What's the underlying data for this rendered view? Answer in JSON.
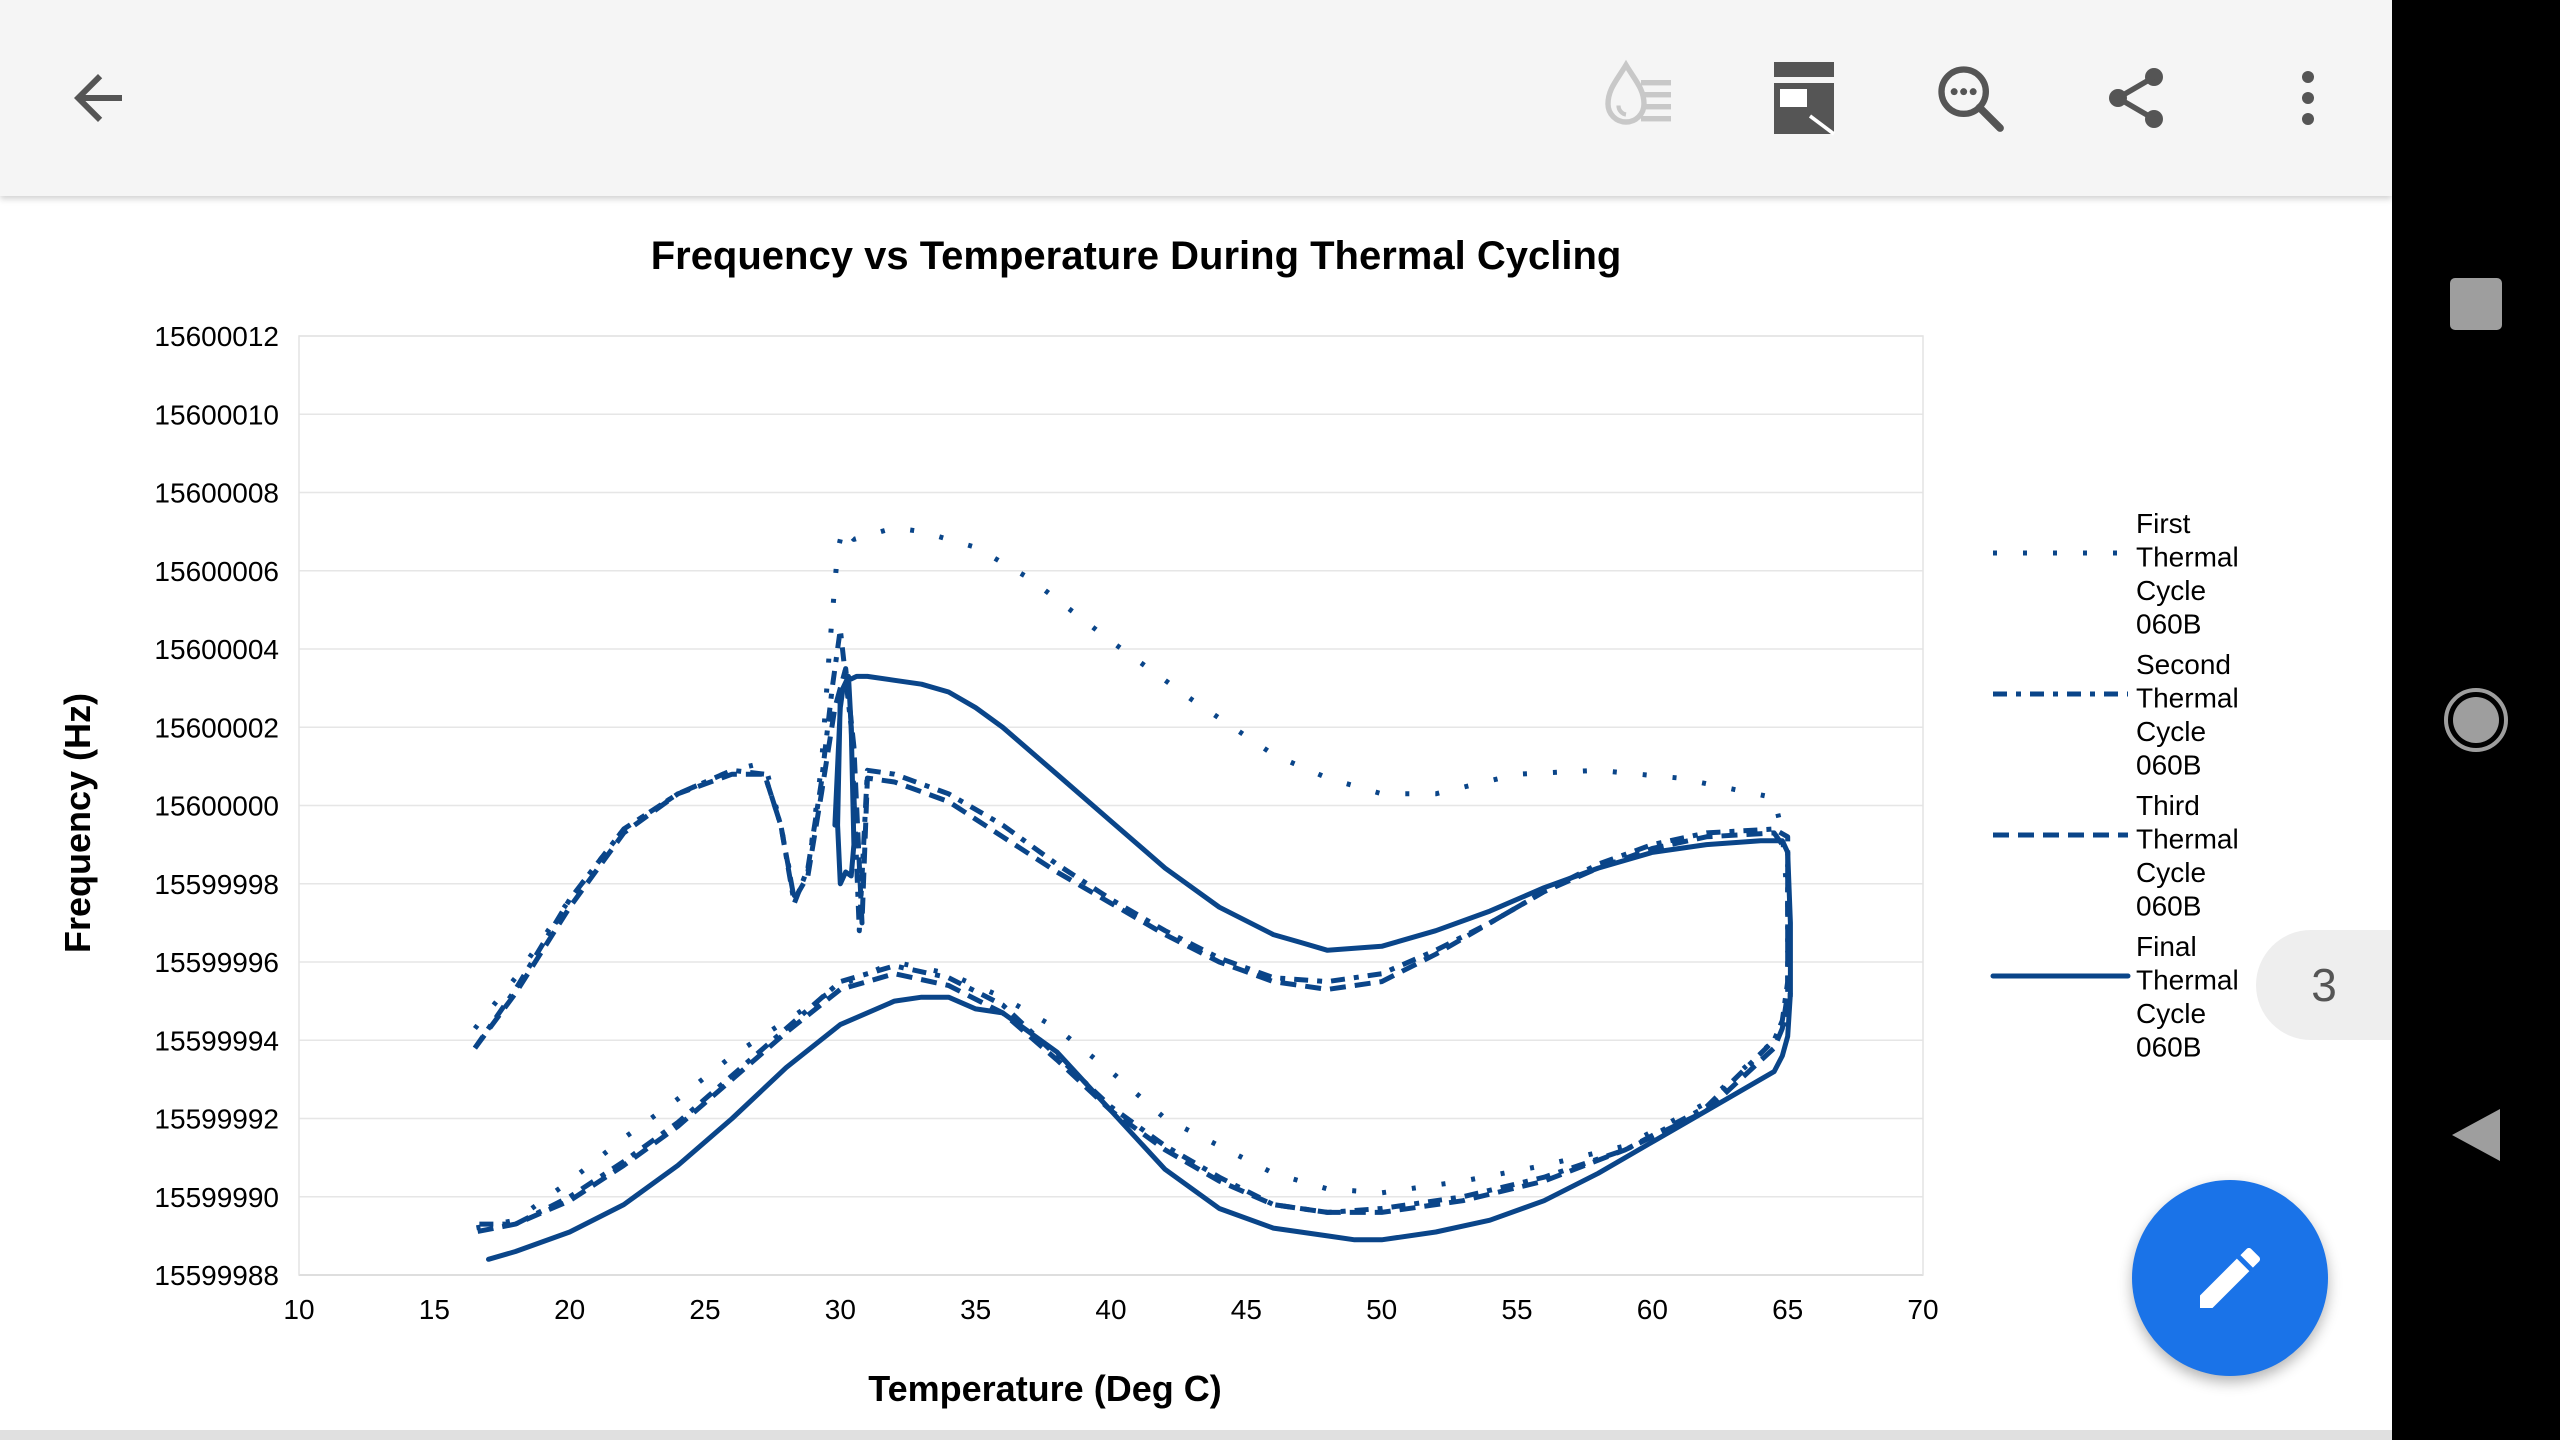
{
  "toolbar": {
    "icons": [
      "back-arrow-icon",
      "ink-mode-icon",
      "page-layout-icon",
      "find-in-document-icon",
      "share-icon",
      "more-vert-icon"
    ]
  },
  "page_indicator": {
    "value": "3"
  },
  "colors": {
    "series": "#0a4589",
    "fab": "#1a73e8",
    "toolbar_bg": "#f5f5f5"
  },
  "chart_data": {
    "type": "scatter",
    "title": "Frequency vs Temperature During Thermal Cycling",
    "xlabel": "Temperature (Deg C)",
    "ylabel": "Frequency (Hz)",
    "xlim": [
      10,
      70
    ],
    "ylim": [
      15599988,
      15600012
    ],
    "x_ticks": [
      "10",
      "15",
      "20",
      "25",
      "30",
      "35",
      "40",
      "45",
      "50",
      "55",
      "60",
      "65",
      "70"
    ],
    "y_ticks": [
      "15599988",
      "15599990",
      "15599992",
      "15599994",
      "15599996",
      "15599998",
      "15600000",
      "15600002",
      "15600004",
      "15600006",
      "15600008",
      "15600010",
      "15600012"
    ],
    "grid": "horizontal",
    "legend_position": "right",
    "series": [
      {
        "name": "First Thermal Cycle 060B",
        "style": "dotted",
        "x": [
          16.5,
          18,
          20,
          22,
          24,
          26,
          27.2,
          27.8,
          28.3,
          28.8,
          29.3,
          29.6,
          29.9,
          30.1,
          30.5,
          31,
          32,
          33,
          35,
          37,
          40,
          43,
          46,
          48,
          50,
          52,
          55,
          58,
          61,
          64.5,
          64.8,
          65,
          65.1,
          64.9,
          64.5,
          62,
          59,
          56,
          53,
          50,
          48,
          46,
          44,
          42,
          40,
          38,
          36,
          34,
          32,
          30,
          28,
          26,
          24,
          22,
          20,
          18,
          16.5
        ],
        "y": [
          15599994.3,
          15599995.6,
          15599997.6,
          15599999.4,
          15600000.3,
          15600000.9,
          15600001.1,
          15599999.5,
          15599997.7,
          15599998.3,
          15600001,
          15600004,
          15600006.5,
          15600007.1,
          15600006.8,
          15600006.9,
          15600007.1,
          15600007,
          15600006.6,
          15600005.8,
          15600004.2,
          15600002.7,
          15600001.3,
          15600000.7,
          15600000.3,
          15600000.3,
          15600000.8,
          15600000.9,
          15600000.7,
          15600000.2,
          15599999.3,
          15599997.5,
          15599995,
          15599994.3,
          15599994,
          15599992.4,
          15599991.3,
          15599990.8,
          15599990.4,
          15599990.1,
          15599990.2,
          15599990.6,
          15599991.3,
          15599992,
          15599993.2,
          15599994.3,
          15599995.1,
          15599995.7,
          15599996,
          15599995.4,
          15599994.5,
          15599993.6,
          15599992.5,
          15599991.5,
          15599990.4,
          15599989.4,
          15599989.2
        ]
      },
      {
        "name": "Second Thermal Cycle 060B",
        "style": "dash-dot",
        "x": [
          16.5,
          18,
          20,
          22,
          24,
          26,
          27.2,
          27.8,
          28.3,
          28.8,
          29.3,
          29.7,
          30,
          30.4,
          30.7,
          31,
          32,
          34,
          36,
          38,
          40,
          42,
          44,
          46,
          48,
          50,
          52,
          54,
          56,
          58,
          60,
          62,
          64.5,
          65,
          65,
          65,
          64.8,
          64.5,
          62,
          59,
          56,
          53,
          50,
          48,
          46,
          44,
          42,
          40,
          38,
          36,
          34,
          32,
          30,
          28,
          26,
          24,
          22,
          20,
          18,
          16.5
        ],
        "y": [
          15599993.8,
          15599995.3,
          15599997.6,
          15599999.4,
          15600000.3,
          15600000.9,
          15600000.8,
          15599999.5,
          15599997.5,
          15599998.4,
          15600000.6,
          15600003,
          15600004.5,
          15600002,
          15599996.8,
          15600000.9,
          15600000.8,
          15600000.3,
          15599999.5,
          15599998.5,
          15599997.6,
          15599996.8,
          15599996.1,
          15599995.6,
          15599995.5,
          15599995.7,
          15599996.3,
          15599997,
          15599997.8,
          15599998.5,
          15599999,
          15599999.3,
          15599999.4,
          15599999.2,
          15599997.4,
          15599995.5,
          15599994.5,
          15599994,
          15599992.3,
          15599991.2,
          15599990.5,
          15599990,
          15599989.7,
          15599989.6,
          15599989.8,
          15599990.5,
          15599991.3,
          15599992.3,
          15599993.6,
          15599994.9,
          15599995.6,
          15599995.9,
          15599995.5,
          15599994.3,
          15599993.1,
          15599991.9,
          15599990.9,
          15599990,
          15599989.3,
          15599989.3
        ]
      },
      {
        "name": "Third Thermal Cycle 060B",
        "style": "dashed",
        "x": [
          16.5,
          18,
          20,
          22,
          24,
          26,
          27.2,
          27.8,
          28.3,
          28.8,
          29.3,
          29.8,
          30.2,
          30.5,
          30.8,
          31,
          32,
          34,
          36,
          38,
          40,
          42,
          44,
          46,
          48,
          50,
          52,
          54,
          56,
          58,
          60,
          62,
          64.5,
          65,
          65,
          65,
          64.8,
          64.5,
          62,
          59,
          56,
          53,
          50,
          48,
          46,
          44,
          42,
          40,
          38,
          36,
          34,
          32,
          30,
          28,
          26,
          24,
          22,
          20,
          18,
          16.5
        ],
        "y": [
          15599993.8,
          15599995.2,
          15599997.4,
          15599999.3,
          15600000.3,
          15600000.8,
          15600000.8,
          15599999.5,
          15599997.6,
          15599998.2,
          15600000.3,
          15600002.5,
          15600003.5,
          15600001.5,
          15599997,
          15600000.7,
          15600000.6,
          15600000.1,
          15599999.2,
          15599998.3,
          15599997.5,
          15599996.7,
          15599996,
          15599995.5,
          15599995.3,
          15599995.5,
          15599996.2,
          15599997,
          15599997.8,
          15599998.4,
          15599998.9,
          15599999.2,
          15599999.3,
          15599998.8,
          15599997,
          15599995.2,
          15599994.3,
          15599993.8,
          15599992.2,
          15599991.2,
          15599990.4,
          15599989.9,
          15599989.6,
          15599989.6,
          15599989.8,
          15599990.4,
          15599991.2,
          15599992.2,
          15599993.5,
          15599994.7,
          15599995.4,
          15599995.7,
          15599995.3,
          15599994.2,
          15599993,
          15599991.8,
          15599990.8,
          15599989.9,
          15599989.3,
          15599989.1
        ]
      },
      {
        "name": "Final Thermal Cycle 060B",
        "style": "solid",
        "x": [
          29.8,
          30,
          30.1,
          30.3,
          30.4,
          30.5,
          30.4,
          30.2,
          30,
          29.9,
          30,
          30.3,
          30.6,
          31,
          32,
          33,
          34,
          35,
          36,
          38,
          40,
          42,
          44,
          46,
          47,
          48,
          50,
          52,
          54,
          56,
          58,
          60,
          62,
          64,
          64.8,
          65,
          65.1,
          65.1,
          65,
          64.8,
          64.5,
          62,
          60,
          58,
          56,
          54,
          52,
          50,
          49,
          48,
          46,
          44,
          42,
          40,
          38,
          36,
          35,
          34,
          33,
          32,
          30,
          28,
          26,
          24,
          22,
          20,
          18,
          17
        ],
        "y": [
          15599999.5,
          15600002.5,
          15600003,
          15600003.3,
          15600002,
          15599999,
          15599998.2,
          15599998.3,
          15599998,
          15599999.5,
          15600002.8,
          15600003.2,
          15600003.3,
          15600003.3,
          15600003.2,
          15600003.1,
          15600002.9,
          15600002.5,
          15600002,
          15600000.8,
          15599999.6,
          15599998.4,
          15599997.4,
          15599996.7,
          15599996.5,
          15599996.3,
          15599996.4,
          15599996.8,
          15599997.3,
          15599997.9,
          15599998.4,
          15599998.8,
          15599999,
          15599999.1,
          15599999.1,
          15599998.8,
          15599997,
          15599995.2,
          15599994.1,
          15599993.6,
          15599993.2,
          15599992.2,
          15599991.4,
          15599990.6,
          15599989.9,
          15599989.4,
          15599989.1,
          15599988.9,
          15599988.9,
          15599989,
          15599989.2,
          15599989.7,
          15599990.7,
          15599992.2,
          15599993.7,
          15599994.7,
          15599994.8,
          15599995.1,
          15599995.1,
          15599995,
          15599994.4,
          15599993.3,
          15599992,
          15599990.8,
          15599989.8,
          15599989.1,
          15599988.6,
          15599988.4
        ]
      }
    ]
  }
}
